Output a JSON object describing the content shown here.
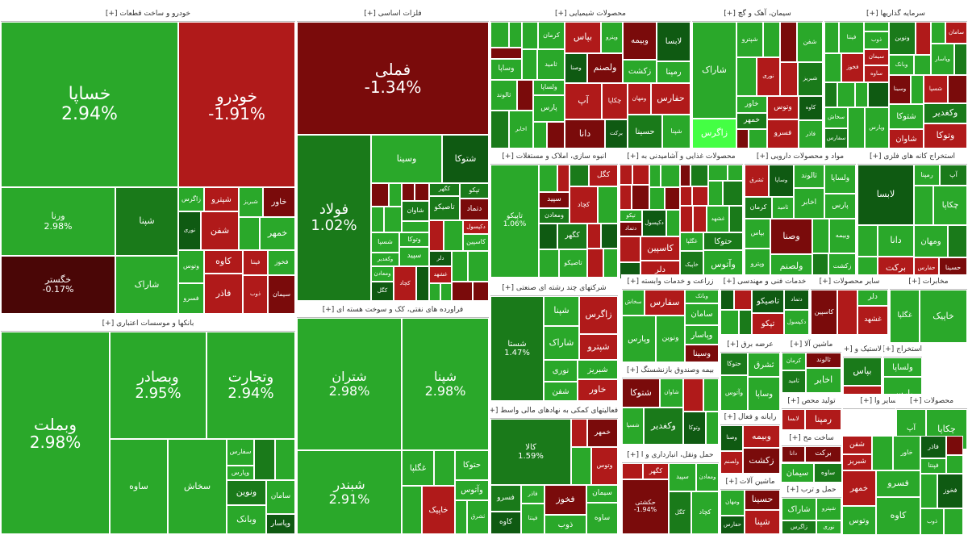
{
  "colors": {
    "green": "#2aa82a",
    "dark_green": "#1a7a1a",
    "darker_green": "#0f5a12",
    "red": "#b01a1a",
    "dark_red": "#7a0b0b",
    "darker_red": "#4a0606",
    "light_green": "#35d835",
    "bright_green": "#44ff44"
  },
  "sectors": [
    {
      "id": "auto",
      "title": "خودرو و ساخت قطعات [+]"
    },
    {
      "id": "metals",
      "title": "فلزات اساسی [+]"
    },
    {
      "id": "chem",
      "title": "محصولات شیمیایی [+]"
    },
    {
      "id": "cement",
      "title": "سیمان، آهک و گچ [+]"
    },
    {
      "id": "invest",
      "title": "سرمایه گذاریها [+]"
    },
    {
      "id": "banks",
      "title": "بانکها و موسسات اعتباری [+]"
    },
    {
      "id": "oil",
      "title": "فراورده های نفتی، کک و سوخت هسته ای [+]"
    },
    {
      "id": "realestate",
      "title": "انبوه سازی، املاک و مستغلات [+]"
    },
    {
      "id": "food",
      "title": "محصولات غذایی و آشامیدنی به [+]"
    },
    {
      "id": "pharma",
      "title": "مواد و محصولات دارویی [+]"
    },
    {
      "id": "mining",
      "title": "استخراج کانه های فلزی [+]"
    },
    {
      "id": "holding",
      "title": "شرکتهای چند رشته ای صنعتی [+]"
    },
    {
      "id": "agri",
      "title": "زراعت و خدمات وابسته [+]"
    },
    {
      "id": "tech",
      "title": "خدمات فنی و مهندسی [+]"
    },
    {
      "id": "other_products",
      "title": "سایر محصولات [+]"
    },
    {
      "id": "mokhaberat",
      "title": "مخابرات [+]"
    },
    {
      "id": "financial",
      "title": "فعالیتهای کمکی به نهادهای مالی واسط [+]"
    },
    {
      "id": "electric",
      "title": "عرضه برق [+]"
    },
    {
      "id": "textile",
      "title": "ماشین آلا [+]"
    },
    {
      "id": "asia",
      "title": "لاستیک و [+]"
    },
    {
      "id": "estekhraj",
      "title": "استخراج [+]"
    },
    {
      "id": "retail",
      "title": "بیمه وصندوق بازنشستگ [+]"
    },
    {
      "id": "radio",
      "title": "رایانه و فعال [+]"
    },
    {
      "id": "transport",
      "title": "حمل ونقل، انبارداری و ا [+]"
    },
    {
      "id": "vehicles",
      "title": "ساخت مح [+]"
    },
    {
      "id": "tolid",
      "title": "تولید محص [+]"
    },
    {
      "id": "machine",
      "title": "ماشین آلات [+]"
    },
    {
      "id": "sayer",
      "title": "سایر وا [+]"
    },
    {
      "id": "hamlonaql",
      "title": "حمل و ترب [+]"
    },
    {
      "id": "mahsulat",
      "title": "محصولات [+]"
    }
  ],
  "tiles": {
    "khasapa": {
      "sym": "خساپا",
      "pct": "2.94%"
    },
    "khodro": {
      "sym": "خودرو",
      "pct": "-1.91%"
    },
    "famli": {
      "sym": "فملی",
      "pct": "-1.34%"
    },
    "foolad": {
      "sym": "فولاد",
      "pct": "1.02%"
    },
    "vemellat": {
      "sym": "وبملت",
      "pct": "2.98%"
    },
    "vebsader": {
      "sym": "وبصادر",
      "pct": "2.95%"
    },
    "vtejarat": {
      "sym": "وتجارت",
      "pct": "2.94%"
    },
    "shetran": {
      "sym": "شتران",
      "pct": "2.98%"
    },
    "shepena": {
      "sym": "شپنا",
      "pct": "2.98%"
    },
    "shebandar": {
      "sym": "شبندر",
      "pct": "2.91%"
    },
    "vernaa": {
      "sym": "ورنا",
      "pct": "2.98%"
    },
    "khegostar": {
      "sym": "خگستر",
      "pct": "-0.17%"
    },
    "shesta": {
      "sym": "شستا",
      "pct": "1.47%"
    },
    "kala": {
      "sym": "کالا",
      "pct": "1.59%"
    },
    "hkeshtiran": {
      "sym": "حکشتی",
      "pct": "-1.94%"
    },
    "tapiko": {
      "sym": "تاپیکو",
      "pct": "1.06%"
    }
  },
  "small_labels": [
    "شپنا",
    "شاراک",
    "زاگرس",
    "شپترو",
    "نوری",
    "شفن",
    "شبریز",
    "خاور",
    "خمهر",
    "وتوس",
    "فسرو",
    "کاوه",
    "فاذر",
    "فپنتا",
    "فخوز",
    "ذوب",
    "سیمان",
    "ساوه",
    "سخاش",
    "سفارس",
    "وپارس",
    "ونوین",
    "وبانک",
    "سامان",
    "وپاسار",
    "وسینا",
    "شتوکا",
    "شاوان",
    "شسپا",
    "وکغدیر",
    "وتوکا",
    "سپید",
    "ومعادن",
    "کگل",
    "کچاد",
    "کگهر",
    "تاصیکو",
    "تپکو",
    "دتماد",
    "دکپسول",
    "کاسپین",
    "دلر",
    "غشهد",
    "غگلپا",
    "خاپیک",
    "حتوکا",
    "وآتوس",
    "ثشرق",
    "وساپا",
    "کرمان",
    "ثامید",
    "ثالوند",
    "اخابر",
    "ولساپا",
    "پارس",
    "بپاس",
    "وپترو",
    "وصنا",
    "ولصنم",
    "وبیمه",
    "زکشت",
    "لابسا",
    "رمپنا",
    "آپ",
    "چکاپا",
    "دانا",
    "برکت",
    "ومهان",
    "حفارس",
    "حسینا"
  ]
}
